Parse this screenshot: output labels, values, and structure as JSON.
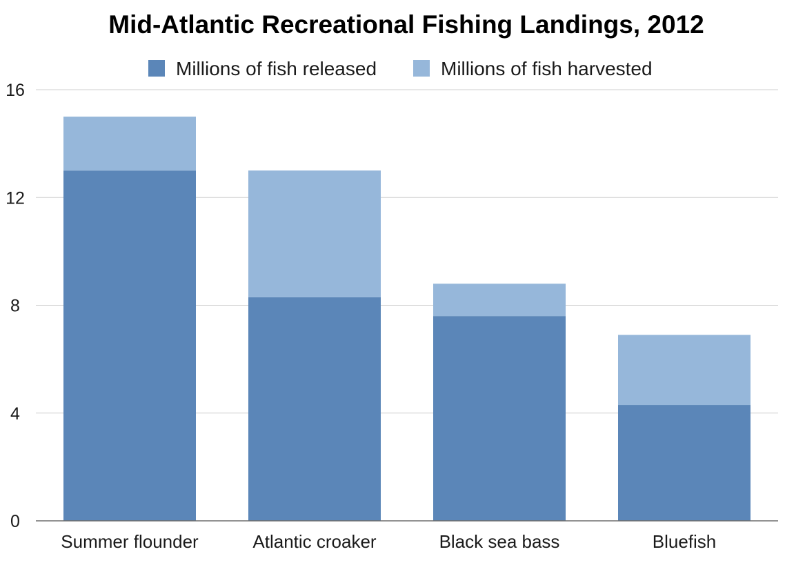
{
  "chart_data": {
    "type": "bar",
    "stacked": true,
    "title": "Mid-Atlantic Recreational Fishing Landings, 2012",
    "xlabel": "",
    "ylabel": "",
    "categories": [
      "Summer flounder",
      "Atlantic croaker",
      "Black sea bass",
      "Bluefish"
    ],
    "series": [
      {
        "name": "Millions of fish released",
        "color": "#5b86b8",
        "values": [
          13.0,
          8.3,
          7.6,
          4.3
        ]
      },
      {
        "name": "Millions of fish harvested",
        "color": "#96b7da",
        "values": [
          2.0,
          4.7,
          1.2,
          2.6
        ]
      }
    ],
    "ylim": [
      0,
      16
    ],
    "yticks": [
      0,
      4,
      8,
      12,
      16
    ],
    "grid": true,
    "legend_position": "top"
  }
}
